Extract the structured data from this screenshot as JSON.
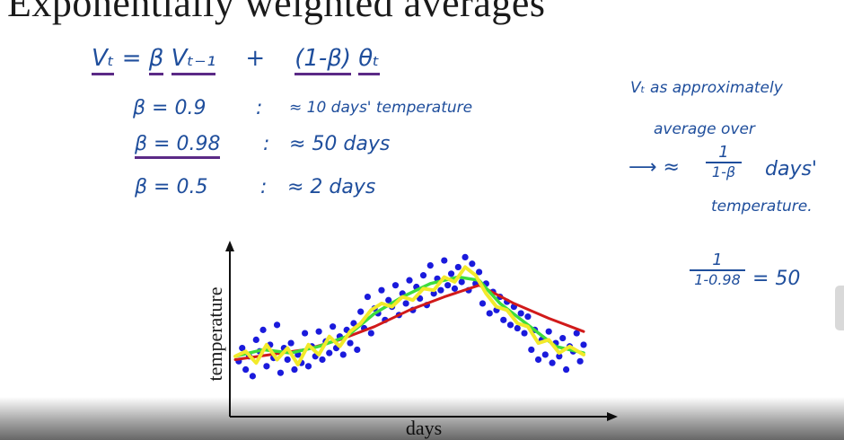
{
  "title": "Exponentially weighted averages",
  "formula": {
    "lhs": "Vₜ",
    "eq": "=",
    "beta": "β",
    "prev": "Vₜ₋₁",
    "plus": "+",
    "one_minus_beta": "(1-β)",
    "theta": "θₜ"
  },
  "examples": [
    {
      "beta_text": "β = 0.9",
      "sep": ":",
      "approx": "≈ 10 days' temperature",
      "highlighted": false
    },
    {
      "beta_text": "β = 0.98",
      "sep": ":",
      "approx": "≈ 50 days",
      "highlighted": true
    },
    {
      "beta_text": "β = 0.5",
      "sep": ":",
      "approx": "≈ 2 days",
      "highlighted": false
    }
  ],
  "side_note": {
    "line1": "Vₜ as approximately",
    "line2": "average over",
    "arrow": "⟶ ≈",
    "frac_num": "1",
    "frac_den": "1-β",
    "line3_tail": "days'",
    "line4": "temperature."
  },
  "side_calc": {
    "num": "1",
    "den": "1-0.98",
    "result": "= 50"
  },
  "chart_data": {
    "type": "scatter",
    "xlabel": "days",
    "ylabel": "temperature",
    "xlim": [
      0,
      100
    ],
    "ylim": [
      0,
      100
    ],
    "colors": {
      "points": "#1a1adc",
      "beta_0_9": "#d11a1a",
      "beta_0_98": "#3ddc3d",
      "beta_0_5": "#f2ea2a",
      "axes": "#111111"
    },
    "points": [
      [
        1,
        27
      ],
      [
        2,
        35
      ],
      [
        3,
        22
      ],
      [
        4,
        30
      ],
      [
        5,
        18
      ],
      [
        6,
        40
      ],
      [
        7,
        33
      ],
      [
        8,
        46
      ],
      [
        9,
        24
      ],
      [
        10,
        37
      ],
      [
        11,
        29
      ],
      [
        12,
        49
      ],
      [
        13,
        20
      ],
      [
        14,
        35
      ],
      [
        15,
        28
      ],
      [
        16,
        38
      ],
      [
        17,
        22
      ],
      [
        18,
        31
      ],
      [
        19,
        26
      ],
      [
        20,
        44
      ],
      [
        21,
        24
      ],
      [
        22,
        36
      ],
      [
        23,
        30
      ],
      [
        24,
        45
      ],
      [
        25,
        28
      ],
      [
        26,
        39
      ],
      [
        27,
        32
      ],
      [
        28,
        48
      ],
      [
        29,
        35
      ],
      [
        30,
        42
      ],
      [
        31,
        31
      ],
      [
        32,
        46
      ],
      [
        33,
        38
      ],
      [
        34,
        50
      ],
      [
        35,
        34
      ],
      [
        36,
        57
      ],
      [
        37,
        47
      ],
      [
        38,
        66
      ],
      [
        39,
        44
      ],
      [
        40,
        59
      ],
      [
        41,
        56
      ],
      [
        42,
        70
      ],
      [
        43,
        52
      ],
      [
        44,
        64
      ],
      [
        45,
        60
      ],
      [
        46,
        73
      ],
      [
        47,
        55
      ],
      [
        48,
        68
      ],
      [
        49,
        62
      ],
      [
        50,
        76
      ],
      [
        51,
        58
      ],
      [
        52,
        72
      ],
      [
        53,
        65
      ],
      [
        54,
        79
      ],
      [
        55,
        61
      ],
      [
        56,
        85
      ],
      [
        57,
        68
      ],
      [
        58,
        77
      ],
      [
        59,
        70
      ],
      [
        60,
        88
      ],
      [
        61,
        73
      ],
      [
        62,
        80
      ],
      [
        63,
        71
      ],
      [
        64,
        84
      ],
      [
        65,
        75
      ],
      [
        66,
        90
      ],
      [
        67,
        70
      ],
      [
        68,
        86
      ],
      [
        69,
        74
      ],
      [
        70,
        81
      ],
      [
        71,
        62
      ],
      [
        72,
        74
      ],
      [
        73,
        56
      ],
      [
        74,
        69
      ],
      [
        75,
        58
      ],
      [
        76,
        66
      ],
      [
        77,
        52
      ],
      [
        78,
        63
      ],
      [
        79,
        49
      ],
      [
        80,
        60
      ],
      [
        81,
        47
      ],
      [
        82,
        56
      ],
      [
        83,
        44
      ],
      [
        84,
        54
      ],
      [
        85,
        34
      ],
      [
        86,
        46
      ],
      [
        87,
        28
      ],
      [
        88,
        40
      ],
      [
        89,
        31
      ],
      [
        90,
        45
      ],
      [
        91,
        26
      ],
      [
        92,
        38
      ],
      [
        93,
        30
      ],
      [
        94,
        41
      ],
      [
        95,
        22
      ],
      [
        96,
        36
      ],
      [
        97,
        33
      ],
      [
        98,
        44
      ],
      [
        99,
        27
      ],
      [
        100,
        37
      ]
    ],
    "series": [
      {
        "values": [
          [
            0,
            28
          ],
          [
            10,
            31
          ],
          [
            20,
            34
          ],
          [
            30,
            40
          ],
          [
            40,
            48
          ],
          [
            50,
            58
          ],
          [
            60,
            66
          ],
          [
            70,
            73
          ],
          [
            80,
            62
          ],
          [
            90,
            53
          ],
          [
            100,
            45
          ]
        ]
      },
      {
        "values": [
          [
            0,
            30
          ],
          [
            8,
            34
          ],
          [
            16,
            32
          ],
          [
            24,
            36
          ],
          [
            32,
            42
          ],
          [
            40,
            56
          ],
          [
            48,
            66
          ],
          [
            56,
            74
          ],
          [
            64,
            78
          ],
          [
            70,
            76
          ],
          [
            76,
            62
          ],
          [
            84,
            49
          ],
          [
            92,
            36
          ],
          [
            100,
            32
          ]
        ]
      },
      {
        "values": [
          [
            0,
            30
          ],
          [
            3,
            33
          ],
          [
            6,
            26
          ],
          [
            9,
            37
          ],
          [
            12,
            28
          ],
          [
            15,
            35
          ],
          [
            18,
            25
          ],
          [
            21,
            37
          ],
          [
            24,
            31
          ],
          [
            27,
            42
          ],
          [
            30,
            36
          ],
          [
            33,
            45
          ],
          [
            36,
            50
          ],
          [
            39,
            58
          ],
          [
            42,
            62
          ],
          [
            45,
            60
          ],
          [
            48,
            66
          ],
          [
            51,
            64
          ],
          [
            54,
            71
          ],
          [
            57,
            70
          ],
          [
            60,
            78
          ],
          [
            63,
            75
          ],
          [
            66,
            84
          ],
          [
            69,
            79
          ],
          [
            72,
            68
          ],
          [
            75,
            60
          ],
          [
            78,
            58
          ],
          [
            81,
            50
          ],
          [
            84,
            48
          ],
          [
            87,
            38
          ],
          [
            90,
            40
          ],
          [
            93,
            32
          ],
          [
            96,
            36
          ],
          [
            100,
            31
          ]
        ]
      }
    ]
  }
}
